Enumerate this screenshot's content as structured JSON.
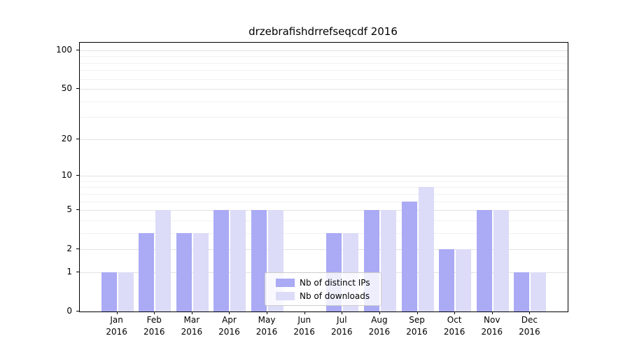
{
  "chart_data": {
    "type": "bar",
    "title": "drzebrafishdrrefseqcdf 2016",
    "scale": "log1p",
    "categories": [
      "Jan",
      "Feb",
      "Mar",
      "Apr",
      "May",
      "Jun",
      "Jul",
      "Aug",
      "Sep",
      "Oct",
      "Nov",
      "Dec"
    ],
    "year_label": "2016",
    "series": [
      {
        "name": "Nb of distinct IPs",
        "color": "#aaaaf5",
        "values": [
          1,
          3,
          3,
          5,
          5,
          0,
          3,
          5,
          6,
          2,
          5,
          1
        ]
      },
      {
        "name": "Nb of downloads",
        "color": "#dcdcf8",
        "values": [
          1,
          5,
          3,
          5,
          5,
          0,
          3,
          5,
          8,
          2,
          5,
          1
        ]
      }
    ],
    "y_axis": {
      "ticks": [
        0,
        1,
        2,
        5,
        10,
        20,
        50,
        100
      ],
      "minor_gridlines": [
        3,
        4,
        6,
        7,
        8,
        9,
        30,
        40,
        60,
        70,
        80,
        90
      ],
      "min": 0,
      "max": 100
    },
    "grid": true,
    "legend_position": "bottom-center"
  },
  "colors": {
    "major_grid": "#e2e2e2",
    "minor_grid": "#f1f1f1",
    "axis": "#000000",
    "legend_border": "#cccccc"
  }
}
